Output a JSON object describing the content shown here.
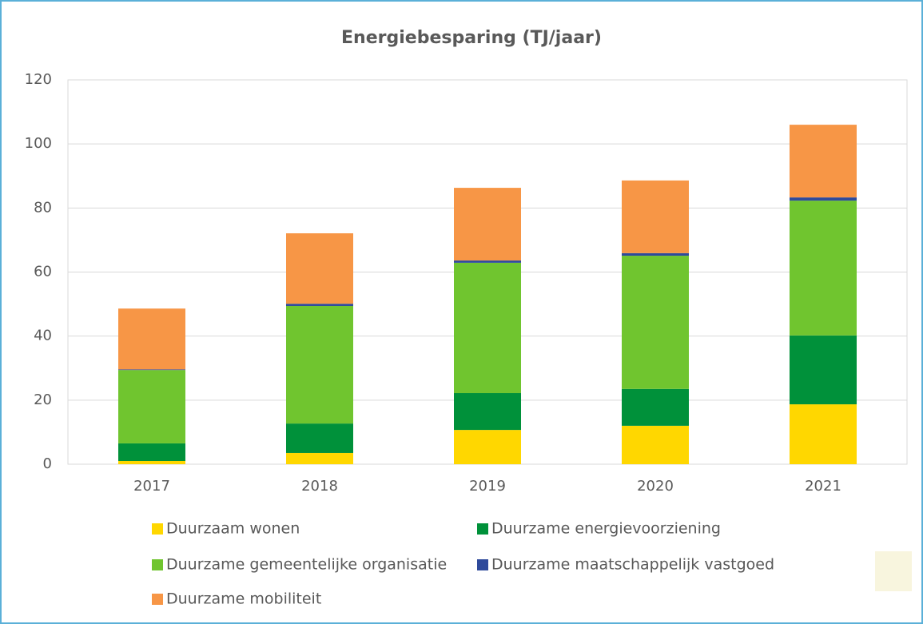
{
  "chart_data": {
    "type": "stacked_bar",
    "title": "Energiebesparing (TJ/jaar)",
    "categories": [
      "2017",
      "2018",
      "2019",
      "2020",
      "2021"
    ],
    "series": [
      {
        "name": "Duurzaam wonen",
        "color": "#FFD700",
        "values": [
          1.0,
          3.5,
          10.7,
          12.0,
          18.7
        ]
      },
      {
        "name": "Duurzame energievoorziening",
        "color": "#00913A",
        "values": [
          5.5,
          9.2,
          11.5,
          11.5,
          21.5
        ]
      },
      {
        "name": "Duurzame gemeentelijke organisatie",
        "color": "#70C52F",
        "values": [
          22.9,
          36.7,
          40.7,
          41.6,
          42.1
        ]
      },
      {
        "name": "Duurzame maatschappelijk vastgoed",
        "color": "#2E4A9B",
        "values": [
          0.2,
          0.7,
          0.7,
          0.8,
          1.0
        ]
      },
      {
        "name": "Duurzame mobiliteit",
        "color": "#F79646",
        "values": [
          19.0,
          22.0,
          22.7,
          22.7,
          22.7
        ]
      }
    ],
    "ylim": [
      0,
      120
    ],
    "yticks": [
      0,
      20,
      40,
      60,
      80,
      100,
      120
    ],
    "grid": true
  }
}
